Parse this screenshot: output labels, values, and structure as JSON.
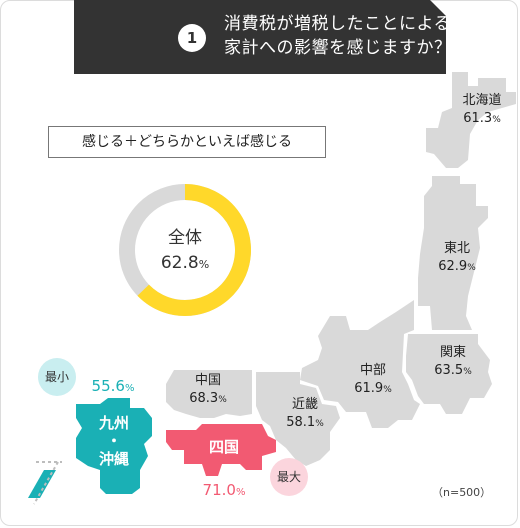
{
  "header": {
    "number": "1",
    "title_line1": "消費税が増税したことによる",
    "title_line2": "家計への影響を感じますか？"
  },
  "caption": "感じる＋どちらかといえば感じる",
  "overall": {
    "label": "全体",
    "value": "62.8",
    "unit": "%"
  },
  "regions": {
    "hokkaido": {
      "name": "北海道",
      "value": "61.3",
      "unit": "%"
    },
    "tohoku": {
      "name": "東北",
      "value": "62.9",
      "unit": "%"
    },
    "kanto": {
      "name": "関東",
      "value": "63.5",
      "unit": "%"
    },
    "chubu": {
      "name": "中部",
      "value": "61.9",
      "unit": "%"
    },
    "kinki": {
      "name": "近畿",
      "value": "58.1",
      "unit": "%"
    },
    "chugoku": {
      "name": "中国",
      "value": "68.3",
      "unit": "%"
    },
    "shikoku": {
      "name": "四国",
      "value": "71.0",
      "unit": "%"
    },
    "kyushu": {
      "name1": "九州",
      "dot": "・",
      "name2": "沖縄",
      "value": "55.6",
      "unit": "%"
    }
  },
  "badges": {
    "min": "最小",
    "max": "最大"
  },
  "sample": "（n=500）",
  "colors": {
    "header_bg": "#333333",
    "gray": "#d9d9d9",
    "yellow": "#ffd82a",
    "teal": "#1ab0b5",
    "pink": "#f25a72",
    "pink_badge": "#fbd5dd",
    "teal_badge": "#c9eef0"
  },
  "chart_data": {
    "type": "pie",
    "title": "消費税が増税したことによる家計への影響を感じますか？",
    "subtitle": "感じる＋どちらかといえば感じる",
    "categories": [
      "全体",
      "北海道",
      "東北",
      "関東",
      "中部",
      "近畿",
      "中国",
      "四国",
      "九州・沖縄"
    ],
    "values": [
      62.8,
      61.3,
      62.9,
      63.5,
      61.9,
      58.1,
      68.3,
      71.0,
      55.6
    ],
    "unit": "%",
    "donut": {
      "label": "全体",
      "value": 62.8,
      "max": 100
    },
    "annotations": {
      "min": "九州・沖縄",
      "max": "四国"
    },
    "sample_size": 500
  }
}
